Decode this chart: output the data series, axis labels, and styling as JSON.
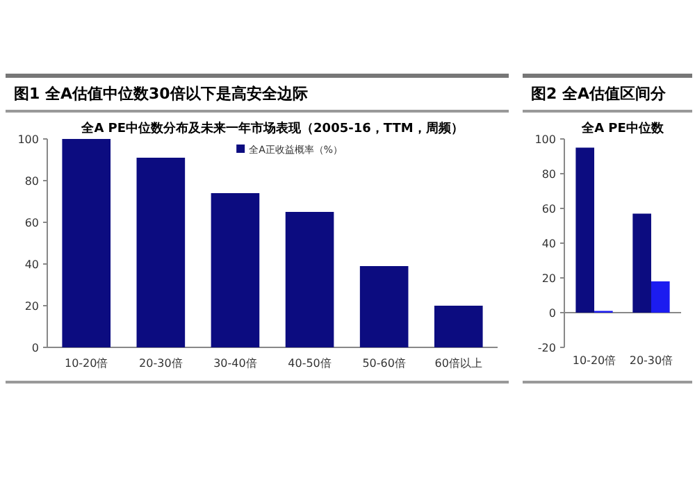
{
  "chart_data": [
    {
      "type": "bar",
      "title": "图1 全A估值中位数30倍以下是高安全边际",
      "subtitle": "全A PE中位数分布及未来一年市场表现（2005-16，TTM，周频）",
      "categories": [
        "10-20倍",
        "20-30倍",
        "30-40倍",
        "40-50倍",
        "50-60倍",
        "60倍以上"
      ],
      "series": [
        {
          "name": "全A正收益概率（%）",
          "color": "#0c0c80",
          "values": [
            100,
            91,
            74,
            65,
            39,
            20
          ]
        }
      ],
      "ylim": [
        0,
        100
      ],
      "yticks": [
        0,
        20,
        40,
        60,
        80,
        100
      ],
      "legend": "top"
    },
    {
      "type": "bar",
      "title": "图2 全A估值区间分",
      "subtitle": "全A PE中位数",
      "categories": [
        "10-20倍",
        "20-30倍"
      ],
      "series": [
        {
          "color": "#0c0c80",
          "values": [
            95,
            57
          ]
        },
        {
          "color": "#1c1cf0",
          "values": [
            1,
            18
          ]
        }
      ],
      "ylim": [
        -20,
        100
      ],
      "yticks": [
        -20,
        0,
        20,
        40,
        60,
        80,
        100
      ]
    }
  ]
}
